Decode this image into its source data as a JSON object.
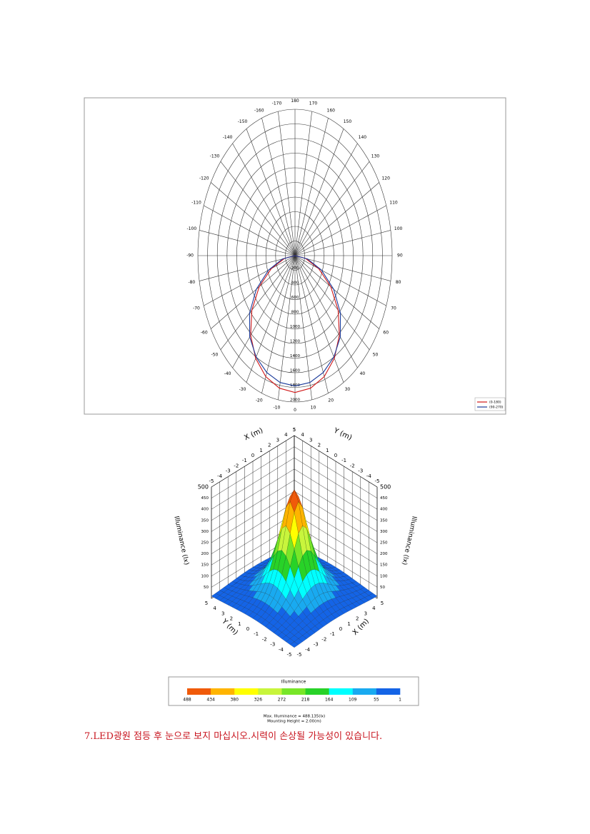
{
  "polar_chart": {
    "type": "polar",
    "angle_ticks": [
      -170,
      -160,
      -150,
      -140,
      -130,
      -120,
      -110,
      -100,
      -90,
      -80,
      -70,
      -60,
      -50,
      -40,
      -30,
      -20,
      -10,
      0,
      10,
      20,
      30,
      40,
      50,
      60,
      70,
      80,
      90,
      100,
      110,
      120,
      130,
      140,
      150,
      160,
      170,
      180
    ],
    "rlim": [
      0,
      2000
    ],
    "radial_ticks": [
      200,
      400,
      600,
      800,
      1000,
      1200,
      1400,
      1600,
      1800,
      2000
    ],
    "angles": [
      -90,
      -80,
      -70,
      -60,
      -50,
      -40,
      -30,
      -20,
      -10,
      0,
      10,
      20,
      30,
      40,
      50,
      60,
      70,
      80,
      90
    ],
    "series": [
      {
        "name": "(0-180)",
        "color": "#d01818",
        "values": [
          0,
          220,
          520,
          850,
          1160,
          1420,
          1620,
          1760,
          1840,
          1870,
          1840,
          1760,
          1620,
          1420,
          1160,
          850,
          520,
          220,
          0
        ]
      },
      {
        "name": "(90-270)",
        "color": "#1a3a9a",
        "values": [
          0,
          260,
          580,
          920,
          1220,
          1450,
          1600,
          1700,
          1760,
          1780,
          1760,
          1700,
          1600,
          1450,
          1220,
          920,
          580,
          260,
          0
        ]
      }
    ]
  },
  "surface_plot": {
    "type": "surface",
    "x_label": "X (m)",
    "y_label": "Y (m)",
    "z_label": "Illuminance (lx)",
    "x_ticks": [
      -5,
      -4,
      -3,
      -2,
      -1,
      0,
      1,
      2,
      3,
      4,
      5
    ],
    "y_ticks": [
      -5,
      -4,
      -3,
      -2,
      -1,
      0,
      1,
      2,
      3,
      4,
      5
    ],
    "zlim": [
      0,
      500
    ],
    "z_ticks": [
      50,
      100,
      150,
      200,
      250,
      300,
      350,
      400,
      450,
      500
    ],
    "max_illuminance": 488.135,
    "mounting_height": 2.0,
    "colorbar": {
      "title": "Illuminance",
      "labels": [
        488,
        434,
        380,
        326,
        272,
        218,
        164,
        109,
        55,
        1
      ],
      "colors": [
        "#f05a0a",
        "#ffb400",
        "#ffff00",
        "#c8f53c",
        "#78e628",
        "#28d228",
        "#00ffff",
        "#19aaf0",
        "#1464e6"
      ]
    },
    "notes": [
      "Max. Illuminance = 488.135(lx)",
      "Mounting Height = 2.00(m)"
    ]
  },
  "caption": "7.LED광원 점등 후 눈으로 보지 마십시오.시력이 손상될 가능성이 있습니다."
}
